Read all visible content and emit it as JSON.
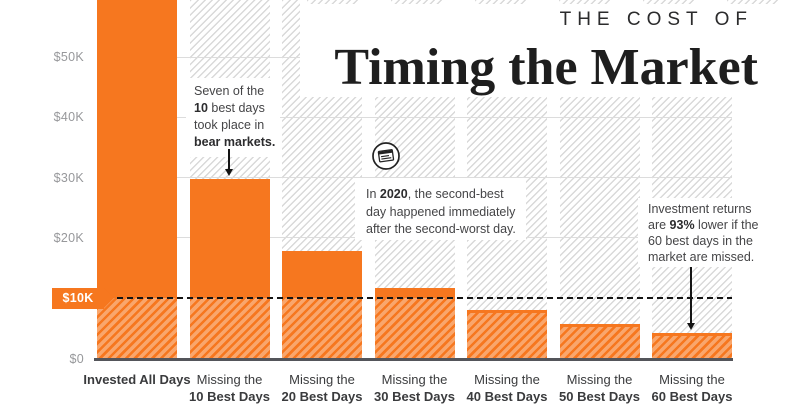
{
  "header": {
    "kicker": "THE COST OF",
    "title": "Timing the Market"
  },
  "chart_data": {
    "type": "bar",
    "title": "THE COST OF Timing the Market",
    "categories": [
      "Invested All Days",
      "Missing the 10 Best Days",
      "Missing the 20 Best Days",
      "Missing the 30 Best Days",
      "Missing the 40 Best Days",
      "Missing the 50 Best Days",
      "Missing the 60 Best Days"
    ],
    "values": [
      64844,
      29708,
      17826,
      11701,
      8048,
      5746,
      4205
    ],
    "x_labels": [
      {
        "top": "Invested All Days",
        "bottom": "",
        "bold_top": true
      },
      {
        "top": "Missing the",
        "bottom": "10 Best Days",
        "bold_top": false
      },
      {
        "top": "Missing the",
        "bottom": "20 Best Days",
        "bold_top": false
      },
      {
        "top": "Missing the",
        "bottom": "30 Best Days",
        "bold_top": false
      },
      {
        "top": "Missing the",
        "bottom": "40 Best Days",
        "bold_top": false
      },
      {
        "top": "Missing the",
        "bottom": "50 Best Days",
        "bold_top": false
      },
      {
        "top": "Missing the",
        "bottom": "60 Best Days",
        "bold_top": false
      }
    ],
    "y_ticks": [
      {
        "label": "$0",
        "value": 0
      },
      {
        "label": "$10K",
        "value": 10000
      },
      {
        "label": "$20K",
        "value": 20000
      },
      {
        "label": "$30K",
        "value": 30000
      },
      {
        "label": "$40K",
        "value": 40000
      },
      {
        "label": "$50K",
        "value": 50000
      }
    ],
    "threshold_line": {
      "value": 10000,
      "label": "$10K",
      "style": "dashed"
    },
    "ylim": [
      0,
      59500
    ],
    "grid": "horizontal",
    "legend": "none"
  },
  "annotations": {
    "bear_markets": {
      "line1": "Seven of the",
      "line2_bold": "10",
      "line2_rest": " best days",
      "line3": "took place in",
      "line4_bold": "bear markets."
    },
    "second_best": {
      "line1_pre": "In ",
      "line1_bold": "2020",
      "line1_rest": ", the second-best",
      "line2": "day happened immediately",
      "line3": "after the second-worst day."
    },
    "returns_lower": {
      "line1": "Investment returns",
      "line2_pre": "are ",
      "line2_bold": "93%",
      "line2_rest": " lower if the",
      "line3": "60 best days in the",
      "line4": "market are missed."
    }
  },
  "icons": {
    "newspaper": "newspaper-in-circle"
  },
  "colors": {
    "orange": "#F6771F",
    "orange_light": "#F9A66C",
    "hatch_gray": "#D9D9D9",
    "ink": "#141414",
    "axis_gray": "#54555A",
    "tick_label_gray": "#97989B",
    "x_label_dark": "#3A3B3D",
    "title_ink": "#1E1E1E"
  }
}
